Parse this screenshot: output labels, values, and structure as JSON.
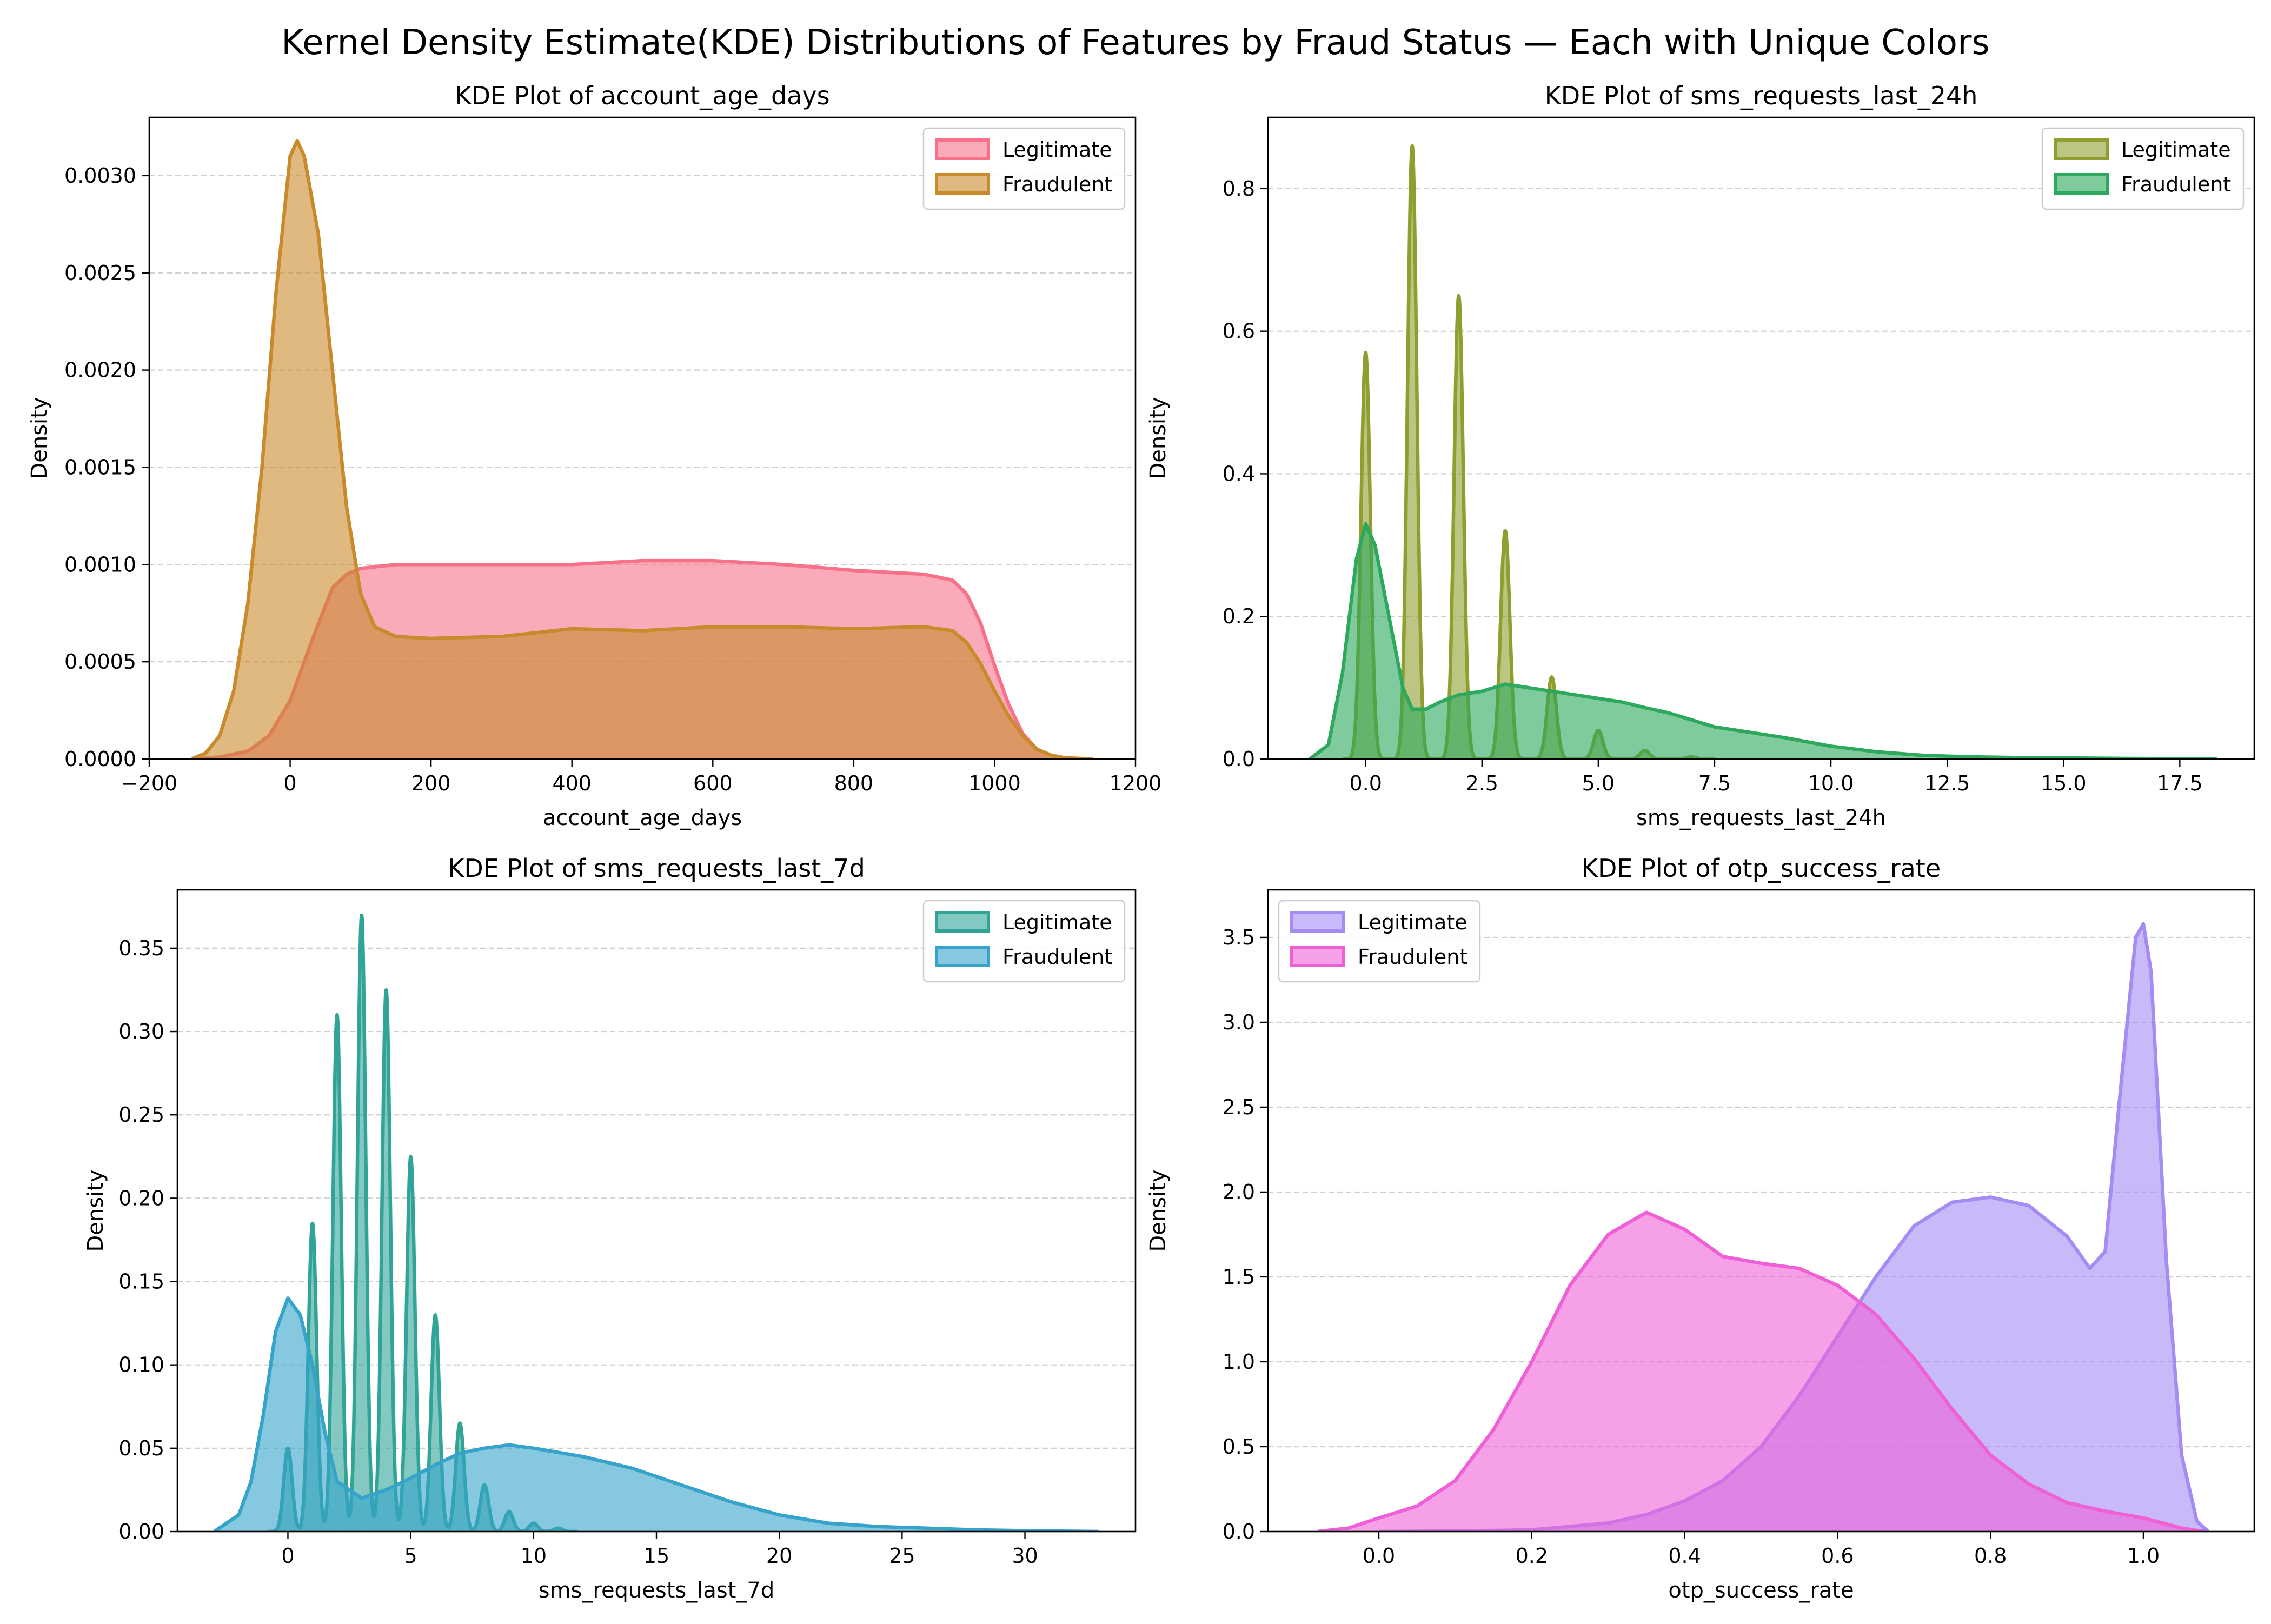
{
  "figure": {
    "title": "Kernel Density Estimate(KDE) Distributions of Features by Fraud Status — Each with Unique Colors"
  },
  "chart_data": [
    {
      "type": "area",
      "title": "KDE Plot of account_age_days",
      "xlabel": "account_age_days",
      "ylabel": "Density",
      "xlim": [
        -200,
        1200
      ],
      "ylim": [
        0,
        0.0033
      ],
      "xticks": [
        -200,
        0,
        200,
        400,
        600,
        800,
        1000,
        1200
      ],
      "xtick_labels": [
        "−200",
        "0",
        "200",
        "400",
        "600",
        "800",
        "1000",
        "1200"
      ],
      "yticks": [
        0,
        0.0005,
        0.001,
        0.0015,
        0.002,
        0.0025,
        0.003
      ],
      "ytick_labels": [
        "0.0000",
        "0.0005",
        "0.0010",
        "0.0015",
        "0.0020",
        "0.0025",
        "0.0030"
      ],
      "grid": "y-dashed",
      "legend": "top-right",
      "series": [
        {
          "name": "Legitimate",
          "color": "#f77189",
          "x": [
            -140,
            -100,
            -60,
            -30,
            0,
            30,
            60,
            80,
            100,
            150,
            200,
            300,
            400,
            500,
            600,
            700,
            800,
            900,
            940,
            960,
            980,
            1000,
            1020,
            1040,
            1060,
            1080,
            1100,
            1140
          ],
          "y": [
            0,
            1e-05,
            4e-05,
            0.00012,
            0.0003,
            0.0006,
            0.00088,
            0.00095,
            0.00098,
            0.001,
            0.001,
            0.001,
            0.001,
            0.00102,
            0.00102,
            0.001,
            0.00097,
            0.00095,
            0.00092,
            0.00085,
            0.0007,
            0.00048,
            0.00028,
            0.00013,
            5e-05,
            2e-05,
            5e-06,
            0
          ]
        },
        {
          "name": "Fraudulent",
          "color": "#c98a2c",
          "x": [
            -140,
            -120,
            -100,
            -80,
            -60,
            -40,
            -20,
            0,
            10,
            20,
            40,
            60,
            80,
            100,
            120,
            150,
            200,
            300,
            400,
            500,
            600,
            700,
            800,
            900,
            940,
            960,
            980,
            1000,
            1020,
            1040,
            1060,
            1080,
            1100,
            1140
          ],
          "y": [
            0,
            3e-05,
            0.00012,
            0.00035,
            0.0008,
            0.0015,
            0.0024,
            0.0031,
            0.00318,
            0.0031,
            0.0027,
            0.002,
            0.0013,
            0.00085,
            0.00068,
            0.00063,
            0.00062,
            0.00063,
            0.00067,
            0.00066,
            0.00068,
            0.00068,
            0.00067,
            0.00068,
            0.00066,
            0.0006,
            0.00049,
            0.00035,
            0.00022,
            0.00012,
            5e-05,
            2e-05,
            6e-06,
            0
          ]
        }
      ]
    },
    {
      "type": "area",
      "title": "KDE Plot of sms_requests_last_24h",
      "xlabel": "sms_requests_last_24h",
      "ylabel": "Density",
      "xlim": [
        -2.1,
        19.1
      ],
      "ylim": [
        0,
        0.9
      ],
      "xticks": [
        0,
        2.5,
        5,
        7.5,
        10,
        12.5,
        15,
        17.5
      ],
      "xtick_labels": [
        "0.0",
        "2.5",
        "5.0",
        "7.5",
        "10.0",
        "12.5",
        "15.0",
        "17.5"
      ],
      "yticks": [
        0,
        0.2,
        0.4,
        0.6,
        0.8
      ],
      "ytick_labels": [
        "0.0",
        "0.2",
        "0.4",
        "0.6",
        "0.8"
      ],
      "grid": "y-dashed",
      "legend": "top-right",
      "series": [
        {
          "name": "Legitimate",
          "color": "#8f9e2e",
          "peaks": [
            [
              0,
              0.57
            ],
            [
              1,
              0.86
            ],
            [
              2,
              0.65
            ],
            [
              3,
              0.32
            ],
            [
              4,
              0.115
            ],
            [
              5,
              0.04
            ],
            [
              6,
              0.012
            ],
            [
              7,
              0.003
            ]
          ],
          "peak_width": 0.1,
          "x_range": [
            -0.5,
            7.5
          ]
        },
        {
          "name": "Fraudulent",
          "color": "#2ca95c",
          "x": [
            -1.2,
            -0.8,
            -0.5,
            -0.2,
            0,
            0.2,
            0.5,
            0.8,
            1.0,
            1.3,
            1.6,
            2.0,
            2.5,
            3.0,
            3.5,
            4.0,
            4.5,
            5.0,
            5.5,
            6.0,
            6.5,
            7.0,
            7.5,
            8.0,
            8.5,
            9.0,
            9.5,
            10.0,
            11.0,
            12.0,
            13.0,
            14.0,
            15.0,
            16.0,
            17.0,
            18.3
          ],
          "y": [
            0,
            0.02,
            0.12,
            0.28,
            0.33,
            0.3,
            0.2,
            0.1,
            0.07,
            0.07,
            0.08,
            0.09,
            0.095,
            0.105,
            0.1,
            0.095,
            0.09,
            0.085,
            0.08,
            0.072,
            0.065,
            0.055,
            0.045,
            0.04,
            0.035,
            0.03,
            0.024,
            0.018,
            0.01,
            0.005,
            0.003,
            0.002,
            0.0015,
            0.001,
            0.0005,
            0
          ]
        }
      ]
    },
    {
      "type": "area",
      "title": "KDE Plot of sms_requests_last_7d",
      "xlabel": "sms_requests_last_7d",
      "ylabel": "Density",
      "xlim": [
        -4.5,
        34.5
      ],
      "ylim": [
        0,
        0.385
      ],
      "xticks": [
        0,
        5,
        10,
        15,
        20,
        25,
        30
      ],
      "xtick_labels": [
        "0",
        "5",
        "10",
        "15",
        "20",
        "25",
        "30"
      ],
      "yticks": [
        0,
        0.05,
        0.1,
        0.15,
        0.2,
        0.25,
        0.3,
        0.35
      ],
      "ytick_labels": [
        "0.00",
        "0.05",
        "0.10",
        "0.15",
        "0.20",
        "0.25",
        "0.30",
        "0.35"
      ],
      "grid": "y-dashed",
      "legend": "top-right",
      "series": [
        {
          "name": "Legitimate",
          "color": "#31a498",
          "peaks": [
            [
              0,
              0.05
            ],
            [
              1,
              0.185
            ],
            [
              2,
              0.31
            ],
            [
              3,
              0.37
            ],
            [
              4,
              0.325
            ],
            [
              5,
              0.225
            ],
            [
              6,
              0.13
            ],
            [
              7,
              0.065
            ],
            [
              8,
              0.028
            ],
            [
              9,
              0.012
            ],
            [
              10,
              0.005
            ],
            [
              11,
              0.002
            ]
          ],
          "peak_width": 0.17,
          "x_range": [
            -0.8,
            11.8
          ]
        },
        {
          "name": "Fraudulent",
          "color": "#36a3cb",
          "x": [
            -3,
            -2,
            -1.5,
            -1,
            -0.5,
            0,
            0.5,
            1,
            1.5,
            2,
            3,
            4,
            5,
            6,
            7,
            8,
            9,
            10,
            12,
            14,
            16,
            18,
            20,
            22,
            24,
            26,
            28,
            30,
            33
          ],
          "y": [
            0,
            0.01,
            0.03,
            0.07,
            0.12,
            0.14,
            0.13,
            0.1,
            0.06,
            0.03,
            0.02,
            0.025,
            0.032,
            0.04,
            0.047,
            0.05,
            0.052,
            0.05,
            0.045,
            0.038,
            0.028,
            0.018,
            0.01,
            0.005,
            0.003,
            0.002,
            0.001,
            0.0005,
            0
          ]
        }
      ]
    },
    {
      "type": "area",
      "title": "KDE Plot of otp_success_rate",
      "xlabel": "otp_success_rate",
      "ylabel": "Density",
      "xlim": [
        -0.145,
        1.145
      ],
      "ylim": [
        0,
        3.78
      ],
      "xticks": [
        0,
        0.2,
        0.4,
        0.6,
        0.8,
        1.0
      ],
      "xtick_labels": [
        "0.0",
        "0.2",
        "0.4",
        "0.6",
        "0.8",
        "1.0"
      ],
      "yticks": [
        0,
        0.5,
        1.0,
        1.5,
        2.0,
        2.5,
        3.0,
        3.5
      ],
      "ytick_labels": [
        "0.0",
        "0.5",
        "1.0",
        "1.5",
        "2.0",
        "2.5",
        "3.0",
        "3.5"
      ],
      "grid": "y-dashed",
      "legend": "top-left",
      "series": [
        {
          "name": "Legitimate",
          "color": "#a48cf4",
          "x": [
            0.0,
            0.1,
            0.2,
            0.3,
            0.35,
            0.4,
            0.45,
            0.5,
            0.55,
            0.6,
            0.65,
            0.7,
            0.75,
            0.8,
            0.85,
            0.9,
            0.93,
            0.95,
            0.97,
            0.99,
            1.0,
            1.01,
            1.03,
            1.05,
            1.07,
            1.085
          ],
          "y": [
            0,
            0.003,
            0.01,
            0.05,
            0.1,
            0.18,
            0.3,
            0.5,
            0.8,
            1.15,
            1.5,
            1.8,
            1.94,
            1.97,
            1.92,
            1.74,
            1.55,
            1.65,
            2.6,
            3.5,
            3.58,
            3.3,
            1.6,
            0.45,
            0.06,
            0
          ]
        },
        {
          "name": "Fraudulent",
          "color": "#ef60d7",
          "x": [
            -0.08,
            -0.04,
            0.0,
            0.05,
            0.1,
            0.15,
            0.2,
            0.25,
            0.3,
            0.35,
            0.4,
            0.45,
            0.5,
            0.55,
            0.6,
            0.65,
            0.7,
            0.75,
            0.8,
            0.85,
            0.9,
            0.95,
            1.0,
            1.05,
            1.08
          ],
          "y": [
            0,
            0.02,
            0.08,
            0.15,
            0.3,
            0.6,
            1.0,
            1.45,
            1.75,
            1.88,
            1.78,
            1.62,
            1.58,
            1.55,
            1.45,
            1.28,
            1.02,
            0.72,
            0.45,
            0.28,
            0.17,
            0.12,
            0.08,
            0.02,
            0
          ]
        }
      ]
    }
  ]
}
